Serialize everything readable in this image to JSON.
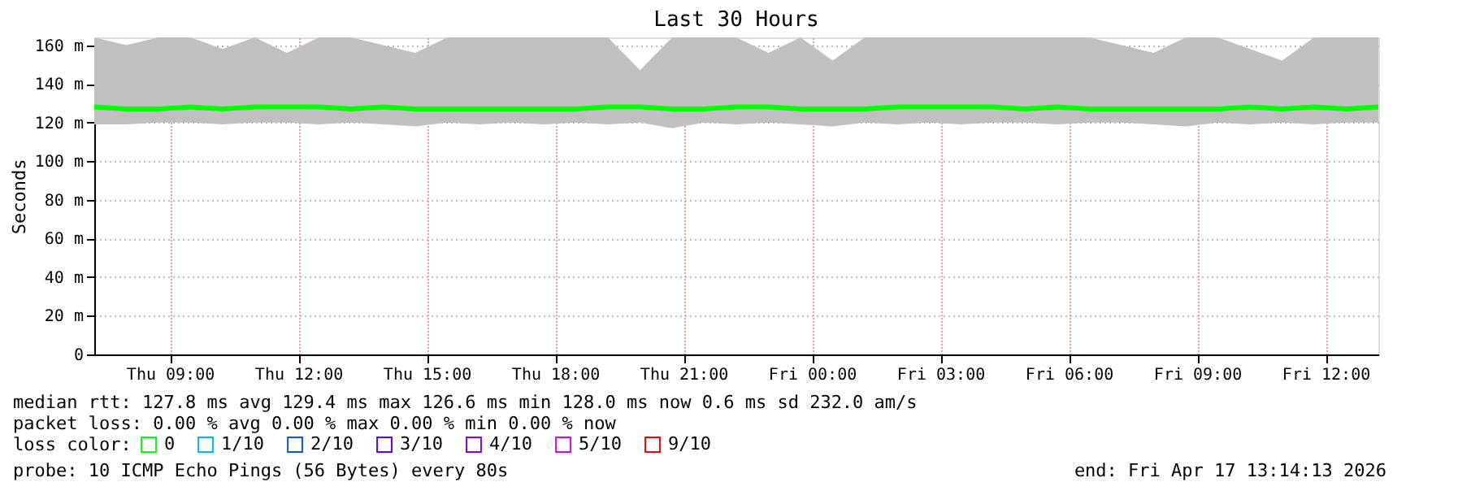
{
  "chart_data": {
    "type": "line",
    "title": "Last 30 Hours",
    "ylabel": "Seconds",
    "x": [
      "2026-04-16T07:14",
      "2026-04-16T07:59",
      "2026-04-16T08:44",
      "2026-04-16T09:29",
      "2026-04-16T10:14",
      "2026-04-16T10:59",
      "2026-04-16T11:44",
      "2026-04-16T12:29",
      "2026-04-16T13:14",
      "2026-04-16T13:59",
      "2026-04-16T14:44",
      "2026-04-16T15:29",
      "2026-04-16T16:14",
      "2026-04-16T16:59",
      "2026-04-16T17:44",
      "2026-04-16T18:29",
      "2026-04-16T19:14",
      "2026-04-16T19:59",
      "2026-04-16T20:44",
      "2026-04-16T21:29",
      "2026-04-16T22:14",
      "2026-04-16T22:59",
      "2026-04-16T23:44",
      "2026-04-17T00:29",
      "2026-04-17T01:14",
      "2026-04-17T01:59",
      "2026-04-17T02:44",
      "2026-04-17T03:29",
      "2026-04-17T04:14",
      "2026-04-17T04:59",
      "2026-04-17T05:44",
      "2026-04-17T06:29",
      "2026-04-17T07:14",
      "2026-04-17T07:59",
      "2026-04-17T08:44",
      "2026-04-17T09:29",
      "2026-04-17T10:14",
      "2026-04-17T10:59",
      "2026-04-17T11:44",
      "2026-04-17T12:29",
      "2026-04-17T13:14"
    ],
    "series": [
      {
        "name": "0",
        "color": "#00ff00",
        "values": [
          128,
          127,
          127,
          128,
          127,
          128,
          128,
          128,
          127,
          128,
          127,
          127,
          127,
          127,
          127,
          127,
          128,
          128,
          127,
          127,
          128,
          128,
          127,
          127,
          127,
          128,
          128,
          128,
          128,
          127,
          128,
          127,
          127,
          127,
          127,
          127,
          128,
          127,
          128,
          127,
          128
        ],
        "lower": [
          119,
          119,
          120,
          120,
          119,
          120,
          120,
          119,
          120,
          119,
          118,
          120,
          119,
          120,
          119,
          120,
          119,
          120,
          117,
          120,
          119,
          120,
          119,
          118,
          120,
          119,
          120,
          119,
          120,
          120,
          119,
          120,
          120,
          119,
          118,
          120,
          119,
          120,
          119,
          120,
          120
        ],
        "upper": [
          164,
          160,
          164,
          164,
          158,
          164,
          156,
          164,
          164,
          160,
          156,
          164,
          164,
          164,
          164,
          164,
          164,
          147,
          164,
          164,
          164,
          156,
          164,
          152,
          164,
          164,
          164,
          164,
          164,
          164,
          164,
          164,
          160,
          156,
          164,
          164,
          158,
          152,
          164,
          164,
          164
        ]
      },
      {
        "name": "1/10",
        "color": "#00b8ff",
        "values": [
          null,
          null,
          null,
          null,
          null,
          null,
          null,
          null,
          null,
          null,
          null,
          null,
          null,
          null,
          null,
          null,
          null,
          null,
          null,
          null,
          null,
          null,
          null,
          null,
          null,
          null,
          null,
          null,
          null,
          null,
          null,
          null,
          null,
          null,
          null,
          null,
          null,
          null,
          null,
          null,
          null
        ]
      },
      {
        "name": "2/10",
        "color": "#0059ff",
        "values": [
          null,
          null,
          null,
          null,
          null,
          null,
          null,
          null,
          null,
          null,
          null,
          null,
          null,
          null,
          null,
          null,
          null,
          null,
          null,
          null,
          null,
          null,
          null,
          null,
          null,
          null,
          null,
          null,
          null,
          null,
          null,
          null,
          null,
          null,
          null,
          null,
          null,
          null,
          null,
          null,
          null
        ]
      },
      {
        "name": "3/10",
        "color": "#5e00ff",
        "values": [
          null,
          null,
          null,
          null,
          null,
          null,
          null,
          null,
          null,
          null,
          null,
          null,
          null,
          null,
          null,
          null,
          null,
          null,
          null,
          null,
          null,
          null,
          null,
          null,
          null,
          null,
          null,
          null,
          null,
          null,
          null,
          null,
          null,
          null,
          null,
          null,
          null,
          null,
          null,
          null,
          null
        ]
      },
      {
        "name": "4/10",
        "color": "#7e00ff",
        "values": [
          null,
          null,
          null,
          null,
          null,
          null,
          null,
          null,
          null,
          null,
          null,
          null,
          null,
          null,
          null,
          null,
          null,
          null,
          null,
          null,
          null,
          null,
          null,
          null,
          null,
          null,
          null,
          null,
          null,
          null,
          null,
          null,
          null,
          null,
          null,
          null,
          null,
          null,
          null,
          null,
          null
        ]
      },
      {
        "name": "5/10",
        "color": "#dd00ff",
        "values": [
          null,
          null,
          null,
          null,
          null,
          null,
          null,
          null,
          null,
          null,
          null,
          null,
          null,
          null,
          null,
          null,
          null,
          null,
          null,
          null,
          null,
          null,
          null,
          null,
          null,
          null,
          null,
          null,
          null,
          null,
          null,
          null,
          null,
          null,
          null,
          null,
          null,
          null,
          null,
          null,
          null
        ]
      },
      {
        "name": "9/10",
        "color": "#ff0000",
        "values": [
          null,
          null,
          null,
          null,
          null,
          null,
          null,
          null,
          null,
          null,
          null,
          null,
          null,
          null,
          null,
          null,
          null,
          null,
          null,
          null,
          null,
          null,
          null,
          null,
          null,
          null,
          null,
          null,
          null,
          null,
          null,
          null,
          null,
          null,
          null,
          null,
          null,
          null,
          null,
          null,
          null
        ]
      }
    ],
    "legend_title": "loss color:",
    "legend": "bottom",
    "xlim": [
      "2026-04-16T07:14",
      "2026-04-17T13:14"
    ],
    "xticks": [
      {
        "value": "2026-04-16T09:00",
        "label": "Thu 09:00"
      },
      {
        "value": "2026-04-16T12:00",
        "label": "Thu 12:00"
      },
      {
        "value": "2026-04-16T15:00",
        "label": "Thu 15:00"
      },
      {
        "value": "2026-04-16T18:00",
        "label": "Thu 18:00"
      },
      {
        "value": "2026-04-16T21:00",
        "label": "Thu 21:00"
      },
      {
        "value": "2026-04-17T00:00",
        "label": "Fri 00:00"
      },
      {
        "value": "2026-04-17T03:00",
        "label": "Fri 03:00"
      },
      {
        "value": "2026-04-17T06:00",
        "label": "Fri 06:00"
      },
      {
        "value": "2026-04-17T09:00",
        "label": "Fri 09:00"
      },
      {
        "value": "2026-04-17T12:00",
        "label": "Fri 12:00"
      }
    ],
    "ylim": [
      0,
      164
    ],
    "yticks": [
      0,
      {
        "value": 20,
        "label": "20 m"
      },
      {
        "value": 40,
        "label": "40 m"
      },
      {
        "value": 60,
        "label": "60 m"
      },
      {
        "value": 80,
        "label": "80 m"
      },
      {
        "value": 100,
        "label": "100 m"
      },
      {
        "value": 120,
        "label": "120 m"
      },
      {
        "value": 140,
        "label": "140 m"
      },
      {
        "value": 160,
        "label": "160 m"
      }
    ],
    "grid": true,
    "annotations": [
      "median rtt:  127.8 ms avg  129.4 ms max  126.6 ms min  128.0 ms now  0.6 ms sd  232.0   am/s",
      "packet loss: 0.00 % avg  0.00 % max  0.00 % min  0.00 % now",
      "probe:       10 ICMP Echo Pings (56 Bytes) every 80s",
      "end: Fri Apr 17 13:14:13 2026"
    ]
  }
}
